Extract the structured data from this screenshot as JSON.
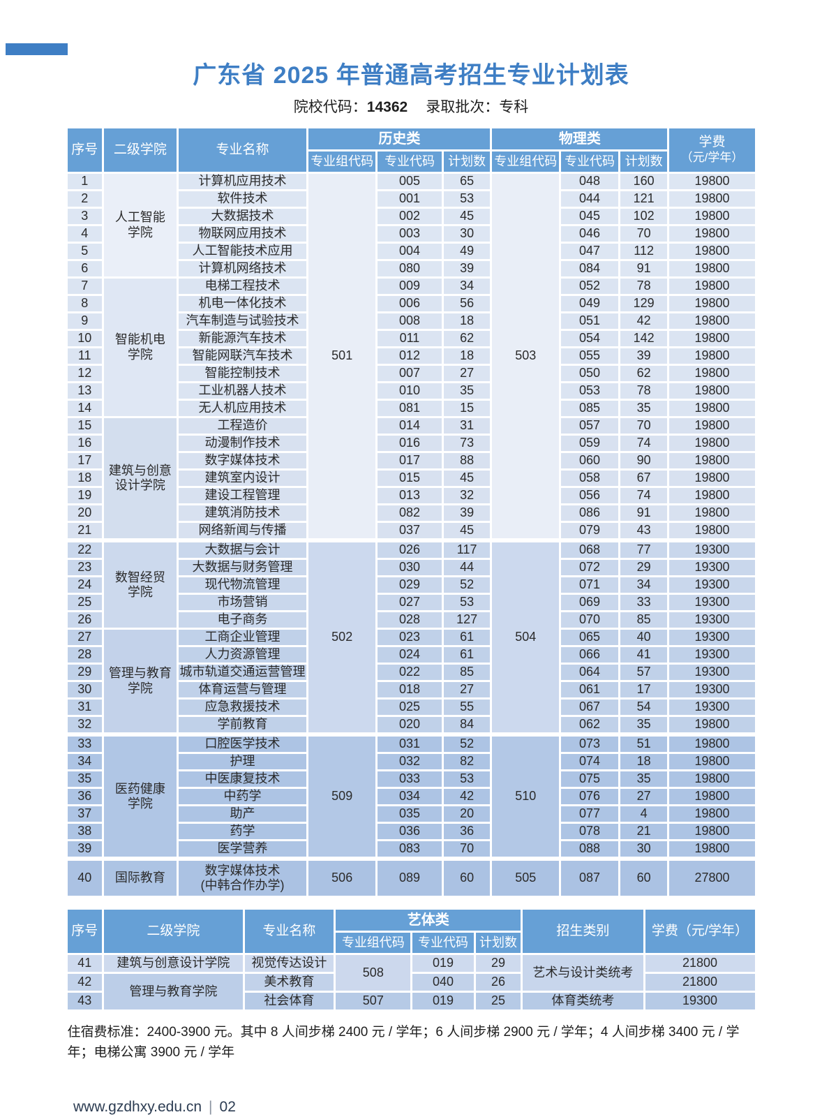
{
  "page": {
    "title": "广东省 2025 年普通高考招生专业计划表",
    "code_label": "院校代码：",
    "code_value": "14362",
    "batch_label": "录取批次：",
    "batch_value": "专科",
    "housing_note": "住宿费标准：2400-3900 元。其中 8 人间步梯 2400 元 / 学年；6 人间步梯 2900 元 / 学年；4 人间步梯 3400 元 / 学年；电梯公寓 3900 元 / 学年",
    "website": "www.gzdhxy.edu.cn",
    "page_number": "02"
  },
  "colors": {
    "accent_blue": "#3e7ec4",
    "table_header_blue": "#66a0d6"
  },
  "table1": {
    "headers": {
      "no": "序号",
      "college": "二级学院",
      "major": "专业名称",
      "history": "历史类",
      "physics": "物理类",
      "group_code": "专业组代码",
      "major_code": "专业代码",
      "plan": "计划数",
      "tuition_line1": "学费",
      "tuition_line2": "（元/学年）"
    },
    "sections": [
      {
        "history_group": "501",
        "physics_group": "503",
        "group_bg": "#e9eef7",
        "colleges": [
          {
            "name_lines": [
              "人工智能",
              "学院"
            ],
            "college_bg": "#eaeff8",
            "cell_bg": "#dde6f3",
            "rows": [
              {
                "no": "1",
                "major": [
                  "计算机应用技术"
                ],
                "h_code": "005",
                "h_plan": "65",
                "p_code": "048",
                "p_plan": "160",
                "fee": "19800"
              },
              {
                "no": "2",
                "major": [
                  "软件技术"
                ],
                "h_code": "001",
                "h_plan": "53",
                "p_code": "044",
                "p_plan": "121",
                "fee": "19800"
              },
              {
                "no": "3",
                "major": [
                  "大数据技术"
                ],
                "h_code": "002",
                "h_plan": "45",
                "p_code": "045",
                "p_plan": "102",
                "fee": "19800"
              },
              {
                "no": "4",
                "major": [
                  "物联网应用技术"
                ],
                "h_code": "003",
                "h_plan": "30",
                "p_code": "046",
                "p_plan": "70",
                "fee": "19800"
              },
              {
                "no": "5",
                "major": [
                  "人工智能技术应用"
                ],
                "h_code": "004",
                "h_plan": "49",
                "p_code": "047",
                "p_plan": "112",
                "fee": "19800"
              },
              {
                "no": "6",
                "major": [
                  "计算机网络技术"
                ],
                "h_code": "080",
                "h_plan": "39",
                "p_code": "084",
                "p_plan": "91",
                "fee": "19800"
              }
            ]
          },
          {
            "name_lines": [
              "智能机电",
              "学院"
            ],
            "college_bg": "#dfe7f4",
            "cell_bg": "#dbe4f2",
            "rows": [
              {
                "no": "7",
                "major": [
                  "电梯工程技术"
                ],
                "h_code": "009",
                "h_plan": "34",
                "p_code": "052",
                "p_plan": "78",
                "fee": "19800"
              },
              {
                "no": "8",
                "major": [
                  "机电一体化技术"
                ],
                "h_code": "006",
                "h_plan": "56",
                "p_code": "049",
                "p_plan": "129",
                "fee": "19800"
              },
              {
                "no": "9",
                "major": [
                  "汽车制造与试验技术"
                ],
                "h_code": "008",
                "h_plan": "18",
                "p_code": "051",
                "p_plan": "42",
                "fee": "19800"
              },
              {
                "no": "10",
                "major": [
                  "新能源汽车技术"
                ],
                "h_code": "011",
                "h_plan": "62",
                "p_code": "054",
                "p_plan": "142",
                "fee": "19800"
              },
              {
                "no": "11",
                "major": [
                  "智能网联汽车技术"
                ],
                "h_code": "012",
                "h_plan": "18",
                "p_code": "055",
                "p_plan": "39",
                "fee": "19800"
              },
              {
                "no": "12",
                "major": [
                  "智能控制技术"
                ],
                "h_code": "007",
                "h_plan": "27",
                "p_code": "050",
                "p_plan": "62",
                "fee": "19800"
              },
              {
                "no": "13",
                "major": [
                  "工业机器人技术"
                ],
                "h_code": "010",
                "h_plan": "35",
                "p_code": "053",
                "p_plan": "78",
                "fee": "19800"
              },
              {
                "no": "14",
                "major": [
                  "无人机应用技术"
                ],
                "h_code": "081",
                "h_plan": "15",
                "p_code": "085",
                "p_plan": "35",
                "fee": "19800"
              }
            ]
          },
          {
            "name_lines": [
              "建筑与创意",
              "设计学院"
            ],
            "college_bg": "#d3deee",
            "cell_bg": "#d8e1f0",
            "rows": [
              {
                "no": "15",
                "major": [
                  "工程造价"
                ],
                "h_code": "014",
                "h_plan": "31",
                "p_code": "057",
                "p_plan": "70",
                "fee": "19800"
              },
              {
                "no": "16",
                "major": [
                  "动漫制作技术"
                ],
                "h_code": "016",
                "h_plan": "73",
                "p_code": "059",
                "p_plan": "74",
                "fee": "19800"
              },
              {
                "no": "17",
                "major": [
                  "数字媒体技术"
                ],
                "h_code": "017",
                "h_plan": "88",
                "p_code": "060",
                "p_plan": "90",
                "fee": "19800"
              },
              {
                "no": "18",
                "major": [
                  "建筑室内设计"
                ],
                "h_code": "015",
                "h_plan": "45",
                "p_code": "058",
                "p_plan": "67",
                "fee": "19800"
              },
              {
                "no": "19",
                "major": [
                  "建设工程管理"
                ],
                "h_code": "013",
                "h_plan": "32",
                "p_code": "056",
                "p_plan": "74",
                "fee": "19800"
              },
              {
                "no": "20",
                "major": [
                  "建筑消防技术"
                ],
                "h_code": "082",
                "h_plan": "39",
                "p_code": "086",
                "p_plan": "91",
                "fee": "19800"
              },
              {
                "no": "21",
                "major": [
                  "网络新闻与传播"
                ],
                "h_code": "037",
                "h_plan": "45",
                "p_code": "079",
                "p_plan": "43",
                "fee": "19800"
              }
            ]
          }
        ]
      },
      {
        "history_group": "502",
        "physics_group": "504",
        "group_bg": "#ccd9ee",
        "colleges": [
          {
            "name_lines": [
              "数智经贸",
              "学院"
            ],
            "college_bg": "#ccd9ed",
            "cell_bg": "#c9d7ec",
            "rows": [
              {
                "no": "22",
                "major": [
                  "大数据与会计"
                ],
                "h_code": "026",
                "h_plan": "117",
                "p_code": "068",
                "p_plan": "77",
                "fee": "19300"
              },
              {
                "no": "23",
                "major": [
                  "大数据与财务管理"
                ],
                "h_code": "030",
                "h_plan": "44",
                "p_code": "072",
                "p_plan": "29",
                "fee": "19300"
              },
              {
                "no": "24",
                "major": [
                  "现代物流管理"
                ],
                "h_code": "029",
                "h_plan": "52",
                "p_code": "071",
                "p_plan": "34",
                "fee": "19300"
              },
              {
                "no": "25",
                "major": [
                  "市场营销"
                ],
                "h_code": "027",
                "h_plan": "53",
                "p_code": "069",
                "p_plan": "33",
                "fee": "19300"
              },
              {
                "no": "26",
                "major": [
                  "电子商务"
                ],
                "h_code": "028",
                "h_plan": "127",
                "p_code": "070",
                "p_plan": "85",
                "fee": "19300"
              }
            ]
          },
          {
            "name_lines": [
              "管理与教育",
              "学院"
            ],
            "college_bg": "#c3d2ea",
            "cell_bg": "#c0d1e9",
            "rows": [
              {
                "no": "27",
                "major": [
                  "工商企业管理"
                ],
                "h_code": "023",
                "h_plan": "61",
                "p_code": "065",
                "p_plan": "40",
                "fee": "19300"
              },
              {
                "no": "28",
                "major": [
                  "人力资源管理"
                ],
                "h_code": "024",
                "h_plan": "61",
                "p_code": "066",
                "p_plan": "41",
                "fee": "19300"
              },
              {
                "no": "29",
                "major": [
                  "城市轨道交通运营管理"
                ],
                "h_code": "022",
                "h_plan": "85",
                "p_code": "064",
                "p_plan": "57",
                "fee": "19300"
              },
              {
                "no": "30",
                "major": [
                  "体育运营与管理"
                ],
                "h_code": "018",
                "h_plan": "27",
                "p_code": "061",
                "p_plan": "17",
                "fee": "19300"
              },
              {
                "no": "31",
                "major": [
                  "应急救援技术"
                ],
                "h_code": "025",
                "h_plan": "55",
                "p_code": "067",
                "p_plan": "54",
                "fee": "19300"
              },
              {
                "no": "32",
                "major": [
                  "学前教育"
                ],
                "h_code": "020",
                "h_plan": "84",
                "p_code": "062",
                "p_plan": "35",
                "fee": "19800"
              }
            ]
          }
        ]
      },
      {
        "history_group": "509",
        "physics_group": "510",
        "group_bg": "#b3c8e6",
        "colleges": [
          {
            "name_lines": [
              "医药健康",
              "学院"
            ],
            "college_bg": "#b0c6e5",
            "cell_bg": "#adc4e4",
            "rows": [
              {
                "no": "33",
                "major": [
                  "口腔医学技术"
                ],
                "h_code": "031",
                "h_plan": "52",
                "p_code": "073",
                "p_plan": "51",
                "fee": "19800"
              },
              {
                "no": "34",
                "major": [
                  "护理"
                ],
                "h_code": "032",
                "h_plan": "82",
                "p_code": "074",
                "p_plan": "18",
                "fee": "19800"
              },
              {
                "no": "35",
                "major": [
                  "中医康复技术"
                ],
                "h_code": "033",
                "h_plan": "53",
                "p_code": "075",
                "p_plan": "35",
                "fee": "19800"
              },
              {
                "no": "36",
                "major": [
                  "中药学"
                ],
                "h_code": "034",
                "h_plan": "42",
                "p_code": "076",
                "p_plan": "27",
                "fee": "19800"
              },
              {
                "no": "37",
                "major": [
                  "助产"
                ],
                "h_code": "035",
                "h_plan": "20",
                "p_code": "077",
                "p_plan": "4",
                "fee": "19800"
              },
              {
                "no": "38",
                "major": [
                  "药学"
                ],
                "h_code": "036",
                "h_plan": "36",
                "p_code": "078",
                "p_plan": "21",
                "fee": "19800"
              },
              {
                "no": "39",
                "major": [
                  "医学营养"
                ],
                "h_code": "083",
                "h_plan": "70",
                "p_code": "088",
                "p_plan": "30",
                "fee": "19800"
              }
            ]
          }
        ]
      },
      {
        "history_group": "506",
        "physics_group": "505",
        "group_bg": "#abc2e3",
        "colleges": [
          {
            "name_lines": [
              "国际教育"
            ],
            "college_bg": "#adc4e4",
            "cell_bg": "#abc2e3",
            "rows": [
              {
                "no": "40",
                "major": [
                  "数字媒体技术",
                  "(中韩合作办学)"
                ],
                "h_code": "089",
                "h_plan": "60",
                "p_code": "087",
                "p_plan": "60",
                "fee": "27800"
              }
            ]
          }
        ]
      }
    ]
  },
  "table2": {
    "headers": {
      "no": "序号",
      "college": "二级学院",
      "major": "专业名称",
      "category": "艺体类",
      "group_code": "专业组代码",
      "major_code": "专业代码",
      "plan": "计划数",
      "admission_type": "招生类别",
      "tuition": "学费（元/学年）"
    },
    "rows": [
      {
        "no": "41",
        "college": "建筑与创意设计学院",
        "major": "视觉传达设计",
        "group_code": "508",
        "major_code": "019",
        "plan": "29",
        "admission_type": "艺术与设计类统考",
        "fee": "21800"
      },
      {
        "no": "42",
        "college": "管理与教育学院",
        "major": "美术教育",
        "major_code": "040",
        "plan": "26",
        "fee": "21800"
      },
      {
        "no": "43",
        "major": "社会体育",
        "group_code": "507",
        "major_code": "019",
        "plan": "25",
        "admission_type": "体育类统考",
        "fee": "19300"
      }
    ]
  }
}
